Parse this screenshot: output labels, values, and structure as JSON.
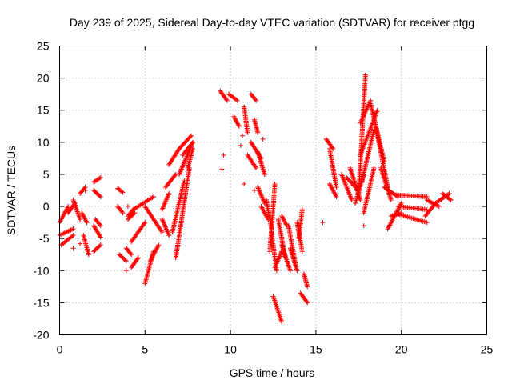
{
  "chart_data": {
    "type": "scatter",
    "title": "Day 239 of 2025, Sidereal Day-to-day VTEC variation (SDTVAR) for receiver ptgg",
    "xlabel": "GPS time / hours",
    "ylabel": "SDTVAR / TECUs",
    "xlim": [
      0,
      25
    ],
    "ylim": [
      -20,
      25
    ],
    "xticks": [
      0,
      5,
      10,
      15,
      20,
      25
    ],
    "yticks": [
      -20,
      -15,
      -10,
      -5,
      0,
      5,
      10,
      15,
      20,
      25
    ],
    "xtick_labels": [
      "0",
      "5",
      "10",
      "15",
      "20",
      "25"
    ],
    "ytick_labels": [
      "-20",
      "-15",
      "-10",
      "-5",
      "0",
      "5",
      "10",
      "15",
      "20",
      "25"
    ],
    "grid": true,
    "marker": "+",
    "color": "#ff0000",
    "segments": [
      {
        "x": [
          0.0,
          0.5
        ],
        "y": [
          -2.5,
          0.0
        ]
      },
      {
        "x": [
          0.0,
          0.8
        ],
        "y": [
          -4.5,
          -3.5
        ]
      },
      {
        "x": [
          0.1,
          0.8
        ],
        "y": [
          -6.0,
          -4.5
        ]
      },
      {
        "x": [
          0.5,
          0.9
        ],
        "y": [
          -1.0,
          0.5
        ]
      },
      {
        "x": [
          0.8,
          1.2
        ],
        "y": [
          1.0,
          -2.0
        ]
      },
      {
        "x": [
          1.3,
          1.6
        ],
        "y": [
          -1.0,
          -2.5
        ]
      },
      {
        "x": [
          1.2,
          1.5
        ],
        "y": [
          2.0,
          3.0
        ]
      },
      {
        "x": [
          1.4,
          1.7
        ],
        "y": [
          -4.5,
          -7.5
        ]
      },
      {
        "x": [
          2.0,
          2.4
        ],
        "y": [
          -7.0,
          -6.0
        ]
      },
      {
        "x": [
          2.0,
          2.4
        ],
        "y": [
          -3.0,
          -4.8
        ]
      },
      {
        "x": [
          2.1,
          2.4
        ],
        "y": [
          -2.0,
          -3.0
        ]
      },
      {
        "x": [
          2.0,
          2.4
        ],
        "y": [
          2.5,
          1.5
        ]
      },
      {
        "x": [
          2.0,
          2.4
        ],
        "y": [
          3.8,
          4.5
        ]
      },
      {
        "x": [
          3.4,
          3.7
        ],
        "y": [
          2.8,
          2.2
        ]
      },
      {
        "x": [
          3.4,
          3.7
        ],
        "y": [
          0.0,
          -1.0
        ]
      },
      {
        "x": [
          3.5,
          3.9
        ],
        "y": [
          -7.5,
          -8.5
        ]
      },
      {
        "x": [
          3.9,
          4.2
        ],
        "y": [
          -6.5,
          -7.5
        ]
      },
      {
        "x": [
          4.0,
          4.3
        ],
        "y": [
          -1.5,
          -0.5
        ]
      },
      {
        "x": [
          4.2,
          4.6
        ],
        "y": [
          -9.5,
          -8.0
        ]
      },
      {
        "x": [
          4.2,
          5.0
        ],
        "y": [
          -5.5,
          -2.5
        ]
      },
      {
        "x": [
          4.0,
          4.4
        ],
        "y": [
          -2.0,
          -1.0
        ]
      },
      {
        "x": [
          4.3,
          5.5
        ],
        "y": [
          -0.5,
          1.5
        ]
      },
      {
        "x": [
          5.0,
          5.5
        ],
        "y": [
          -12.0,
          -7.0
        ]
      },
      {
        "x": [
          5.0,
          6.0
        ],
        "y": [
          0.0,
          -4.0
        ]
      },
      {
        "x": [
          5.3,
          5.8
        ],
        "y": [
          -8.5,
          -6.0
        ]
      },
      {
        "x": [
          6.0,
          6.4
        ],
        "y": [
          -2.0,
          -4.5
        ]
      },
      {
        "x": [
          6.0,
          6.4
        ],
        "y": [
          -0.5,
          2.0
        ]
      },
      {
        "x": [
          6.2,
          6.8
        ],
        "y": [
          3.0,
          5.0
        ]
      },
      {
        "x": [
          6.4,
          7.0
        ],
        "y": [
          6.5,
          9.0
        ]
      },
      {
        "x": [
          6.8,
          7.6
        ],
        "y": [
          -8.0,
          6.0
        ]
      },
      {
        "x": [
          6.6,
          7.3
        ],
        "y": [
          -4.0,
          4.0
        ]
      },
      {
        "x": [
          7.0,
          7.8
        ],
        "y": [
          5.0,
          10.0
        ]
      },
      {
        "x": [
          7.0,
          7.7
        ],
        "y": [
          9.0,
          11.0
        ]
      },
      {
        "x": [
          7.2,
          7.8
        ],
        "y": [
          8.0,
          10.0
        ]
      },
      {
        "x": [
          7.5,
          7.8
        ],
        "y": [
          6.0,
          9.0
        ]
      },
      {
        "x": [
          9.4,
          9.8
        ],
        "y": [
          18.0,
          16.5
        ]
      },
      {
        "x": [
          9.9,
          10.4
        ],
        "y": [
          17.5,
          16.5
        ]
      },
      {
        "x": [
          10.2,
          10.5
        ],
        "y": [
          14.0,
          12.5
        ]
      },
      {
        "x": [
          10.8,
          11.0
        ],
        "y": [
          15.5,
          11.5
        ]
      },
      {
        "x": [
          11.2,
          11.5
        ],
        "y": [
          17.5,
          16.5
        ]
      },
      {
        "x": [
          11.4,
          11.6
        ],
        "y": [
          13.5,
          11.5
        ]
      },
      {
        "x": [
          11.2,
          11.8
        ],
        "y": [
          10.0,
          7.5
        ]
      },
      {
        "x": [
          11.0,
          11.5
        ],
        "y": [
          8.0,
          6.0
        ]
      },
      {
        "x": [
          11.6,
          12.0
        ],
        "y": [
          8.5,
          5.0
        ]
      },
      {
        "x": [
          11.6,
          12.0
        ],
        "y": [
          3.0,
          0.5
        ]
      },
      {
        "x": [
          11.8,
          12.2
        ],
        "y": [
          0.0,
          -2.0
        ]
      },
      {
        "x": [
          12.1,
          12.4
        ],
        "y": [
          1.0,
          -3.5
        ]
      },
      {
        "x": [
          12.3,
          12.6
        ],
        "y": [
          -7.0,
          3.5
        ]
      },
      {
        "x": [
          12.4,
          12.7
        ],
        "y": [
          -4.0,
          -10.0
        ]
      },
      {
        "x": [
          12.6,
          13.0
        ],
        "y": [
          -9.5,
          -7.0
        ]
      },
      {
        "x": [
          12.5,
          13.0
        ],
        "y": [
          -14.0,
          -18.0
        ]
      },
      {
        "x": [
          12.8,
          13.2
        ],
        "y": [
          -2.0,
          -8.0
        ]
      },
      {
        "x": [
          13.0,
          13.3
        ],
        "y": [
          -1.5,
          -3.0
        ]
      },
      {
        "x": [
          13.0,
          13.5
        ],
        "y": [
          -6.0,
          -10.0
        ]
      },
      {
        "x": [
          13.4,
          13.8
        ],
        "y": [
          -3.0,
          -9.0
        ]
      },
      {
        "x": [
          13.5,
          13.9
        ],
        "y": [
          -6.5,
          -10.0
        ]
      },
      {
        "x": [
          13.9,
          14.2
        ],
        "y": [
          -2.5,
          -7.0
        ]
      },
      {
        "x": [
          14.0,
          14.2
        ],
        "y": [
          -5.0,
          -0.5
        ]
      },
      {
        "x": [
          14.1,
          14.5
        ],
        "y": [
          -13.5,
          -15.0
        ]
      },
      {
        "x": [
          14.3,
          14.5
        ],
        "y": [
          -10.5,
          -12.5
        ]
      },
      {
        "x": [
          15.6,
          16.0
        ],
        "y": [
          10.5,
          9.0
        ]
      },
      {
        "x": [
          15.8,
          16.2
        ],
        "y": [
          9.0,
          3.0
        ]
      },
      {
        "x": [
          15.8,
          16.2
        ],
        "y": [
          3.5,
          1.5
        ]
      },
      {
        "x": [
          16.5,
          17.1
        ],
        "y": [
          5.0,
          1.0
        ]
      },
      {
        "x": [
          16.8,
          17.3
        ],
        "y": [
          4.5,
          3.0
        ]
      },
      {
        "x": [
          17.0,
          17.6
        ],
        "y": [
          6.0,
          1.0
        ]
      },
      {
        "x": [
          17.3,
          17.8
        ],
        "y": [
          0.5,
          5.0
        ]
      },
      {
        "x": [
          17.5,
          17.9
        ],
        "y": [
          2.0,
          20.5
        ]
      },
      {
        "x": [
          17.6,
          18.2
        ],
        "y": [
          13.0,
          16.5
        ]
      },
      {
        "x": [
          17.6,
          18.6
        ],
        "y": [
          8.0,
          15.0
        ]
      },
      {
        "x": [
          17.7,
          18.4
        ],
        "y": [
          4.0,
          12.0
        ]
      },
      {
        "x": [
          17.8,
          18.4
        ],
        "y": [
          -1.0,
          6.0
        ]
      },
      {
        "x": [
          18.2,
          19.0
        ],
        "y": [
          16.0,
          7.0
        ]
      },
      {
        "x": [
          18.5,
          19.2
        ],
        "y": [
          12.5,
          3.0
        ]
      },
      {
        "x": [
          18.8,
          19.4
        ],
        "y": [
          6.0,
          1.0
        ]
      },
      {
        "x": [
          19.0,
          19.8
        ],
        "y": [
          3.0,
          1.5
        ]
      },
      {
        "x": [
          19.2,
          20.0
        ],
        "y": [
          -3.5,
          0.5
        ]
      },
      {
        "x": [
          19.4,
          20.0
        ],
        "y": [
          -1.5,
          -1.0
        ]
      },
      {
        "x": [
          19.7,
          21.5
        ],
        "y": [
          1.8,
          1.5
        ]
      },
      {
        "x": [
          19.8,
          21.5
        ],
        "y": [
          0.0,
          -0.5
        ]
      },
      {
        "x": [
          19.8,
          21.5
        ],
        "y": [
          -1.2,
          -2.5
        ]
      },
      {
        "x": [
          21.4,
          22.0
        ],
        "y": [
          -1.5,
          0.5
        ]
      },
      {
        "x": [
          21.5,
          22.2
        ],
        "y": [
          1.0,
          0.0
        ]
      },
      {
        "x": [
          22.0,
          22.8
        ],
        "y": [
          0.5,
          2.0
        ]
      },
      {
        "x": [
          22.4,
          22.9
        ],
        "y": [
          2.0,
          1.0
        ]
      }
    ],
    "isolated_points": [
      {
        "x": 1.5,
        "y": 2.5
      },
      {
        "x": 1.2,
        "y": -5.8
      },
      {
        "x": 0.8,
        "y": -6.5
      },
      {
        "x": 3.9,
        "y": -10.0
      },
      {
        "x": 4.0,
        "y": 0.0
      },
      {
        "x": 9.5,
        "y": 5.8
      },
      {
        "x": 9.6,
        "y": 8.0
      },
      {
        "x": 10.6,
        "y": 9.5
      },
      {
        "x": 10.7,
        "y": 11.0
      },
      {
        "x": 10.8,
        "y": 3.5
      },
      {
        "x": 11.4,
        "y": 2.5
      },
      {
        "x": 11.9,
        "y": 10.5
      },
      {
        "x": 15.4,
        "y": -2.5
      },
      {
        "x": 17.8,
        "y": -3.0
      }
    ]
  }
}
